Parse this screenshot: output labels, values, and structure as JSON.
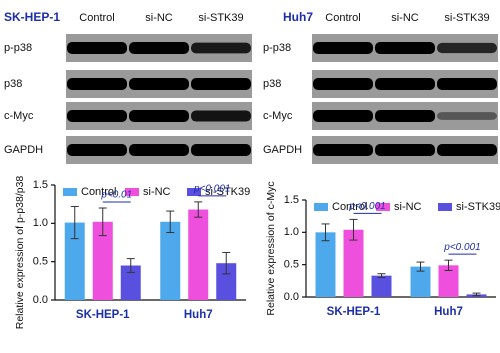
{
  "blots": [
    {
      "title": "SK-HEP-1",
      "lanes": [
        "Control",
        "si-NC",
        "si-STK39"
      ],
      "rows": [
        "p-p38",
        "p38",
        "c-Myc",
        "GAPDH"
      ]
    },
    {
      "title": "Huh7",
      "lanes": [
        "Control",
        "si-NC",
        "si-STK39"
      ],
      "rows": [
        "p-p38",
        "p38",
        "c-Myc",
        "GAPDH"
      ]
    }
  ],
  "chart_data": [
    {
      "type": "bar",
      "ylabel": "Relative expression of p-p38/p38",
      "categories": [
        "SK-HEP-1",
        "Huh7"
      ],
      "series": [
        {
          "name": "Control",
          "color": "#4ea8ec",
          "values": [
            1.01,
            1.02
          ],
          "errors": [
            0.21,
            0.14
          ]
        },
        {
          "name": "si-NC",
          "color": "#ee4fdc",
          "values": [
            1.02,
            1.18
          ],
          "errors": [
            0.18,
            0.1
          ]
        },
        {
          "name": "si-STK39",
          "color": "#5a50e0",
          "values": [
            0.45,
            0.48
          ],
          "errors": [
            0.09,
            0.14
          ]
        }
      ],
      "ylim": [
        0,
        1.5
      ],
      "yticks": [
        {
          "value": 0,
          "label": "0.0"
        },
        {
          "value": 0.5,
          "label": "0.5"
        },
        {
          "value": 1,
          "label": "1.0"
        },
        {
          "value": 1.5,
          "label": "1.5"
        }
      ],
      "annotations": [
        {
          "text": "p<0.01",
          "category": 0
        },
        {
          "text": "p<0.001",
          "category": 1
        }
      ]
    },
    {
      "type": "bar",
      "ylabel": "Relative expression of c-Myc",
      "categories": [
        "SK-HEP-1",
        "Huh7"
      ],
      "series": [
        {
          "name": "Control",
          "color": "#4ea8ec",
          "values": [
            1.0,
            0.47
          ],
          "errors": [
            0.13,
            0.07
          ]
        },
        {
          "name": "si-NC",
          "color": "#ee4fdc",
          "values": [
            1.04,
            0.49
          ],
          "errors": [
            0.16,
            0.08
          ]
        },
        {
          "name": "si-STK39",
          "color": "#5a50e0",
          "values": [
            0.33,
            0.04
          ],
          "errors": [
            0.03,
            0.02
          ]
        }
      ],
      "ylim": [
        0,
        1.5
      ],
      "yticks": [
        {
          "value": 0,
          "label": "0.0"
        },
        {
          "value": 0.5,
          "label": "0.5"
        },
        {
          "value": 1,
          "label": "1.0"
        },
        {
          "value": 1.5,
          "label": "1.5"
        }
      ],
      "annotations": [
        {
          "text": "p<0.001",
          "category": 0
        },
        {
          "text": "p<0.001",
          "category": 1
        }
      ]
    }
  ]
}
